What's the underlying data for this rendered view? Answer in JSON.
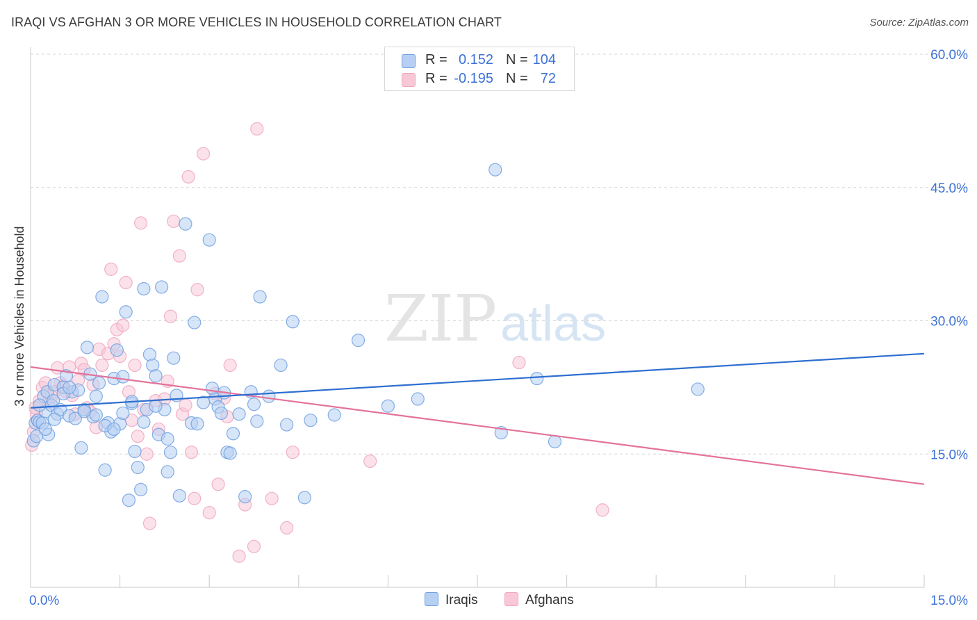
{
  "header": {
    "title": "IRAQI VS AFGHAN 3 OR MORE VEHICLES IN HOUSEHOLD CORRELATION CHART",
    "source": "Source: ZipAtlas.com"
  },
  "legend": {
    "rows": [
      {
        "r_label": "R =",
        "r_value": "0.152",
        "n_label": "N =",
        "n_value": "104"
      },
      {
        "r_label": "R =",
        "r_value": "-0.195",
        "n_label": "N =",
        "n_value": "72"
      }
    ]
  },
  "colors": {
    "iraqis": "#6fa0e0",
    "iraqis_fill": "#b7cff2",
    "iraqis_line": "#2d6fd0",
    "afghans": "#f0a6bf",
    "afghans_fill": "#f8c8d7",
    "afghans_line": "#e3729a",
    "value_text": "#3d72d6",
    "grid": "#d5d5d5"
  },
  "watermark": {
    "zip": "ZIP",
    "atlas": "atlas"
  },
  "chart_data": {
    "type": "scatter",
    "ylabel": "3 or more Vehicles in Household",
    "xlim": [
      0,
      15
    ],
    "ylim": [
      0,
      60
    ],
    "x_tick_labels": [
      "0.0%",
      "15.0%"
    ],
    "y_tick_labels": [
      "60.0%",
      "45.0%",
      "30.0%",
      "15.0%"
    ],
    "y_ticks": [
      60,
      45,
      30,
      15
    ],
    "series": [
      {
        "name": "Iraqis",
        "trend": [
          [
            0,
            20.2
          ],
          [
            15,
            26.3
          ]
        ],
        "points": [
          [
            0.05,
            16.5
          ],
          [
            0.08,
            18.5
          ],
          [
            0.1,
            17.0
          ],
          [
            0.12,
            18.8
          ],
          [
            0.15,
            18.6
          ],
          [
            0.2,
            18.5
          ],
          [
            0.22,
            21.5
          ],
          [
            0.25,
            19.8
          ],
          [
            0.28,
            22.0
          ],
          [
            0.3,
            17.2
          ],
          [
            0.35,
            20.5
          ],
          [
            0.38,
            21.0
          ],
          [
            0.4,
            22.8
          ],
          [
            0.45,
            19.5
          ],
          [
            0.5,
            20.0
          ],
          [
            0.55,
            22.5
          ],
          [
            0.6,
            23.8
          ],
          [
            0.65,
            19.3
          ],
          [
            0.7,
            22.0
          ],
          [
            0.75,
            19.0
          ],
          [
            0.8,
            22.2
          ],
          [
            0.85,
            15.7
          ],
          [
            0.9,
            20.0
          ],
          [
            0.95,
            27.0
          ],
          [
            1.0,
            24.0
          ],
          [
            1.05,
            19.2
          ],
          [
            1.1,
            21.5
          ],
          [
            1.15,
            23.0
          ],
          [
            1.2,
            32.7
          ],
          [
            1.25,
            13.2
          ],
          [
            1.3,
            18.5
          ],
          [
            1.35,
            17.5
          ],
          [
            1.4,
            23.5
          ],
          [
            1.45,
            26.7
          ],
          [
            1.5,
            18.4
          ],
          [
            1.55,
            23.7
          ],
          [
            1.6,
            31.0
          ],
          [
            1.65,
            9.8
          ],
          [
            1.7,
            20.7
          ],
          [
            1.75,
            15.3
          ],
          [
            1.8,
            13.5
          ],
          [
            1.85,
            11.0
          ],
          [
            1.9,
            33.6
          ],
          [
            1.95,
            20.0
          ],
          [
            2.0,
            26.2
          ],
          [
            2.05,
            25.0
          ],
          [
            2.1,
            23.8
          ],
          [
            2.15,
            17.2
          ],
          [
            2.2,
            33.8
          ],
          [
            2.25,
            20.0
          ],
          [
            2.3,
            13.0
          ],
          [
            2.35,
            15.2
          ],
          [
            2.4,
            25.8
          ],
          [
            2.5,
            10.3
          ],
          [
            2.6,
            40.9
          ],
          [
            2.7,
            18.5
          ],
          [
            2.75,
            29.8
          ],
          [
            2.8,
            18.4
          ],
          [
            3.0,
            39.1
          ],
          [
            3.05,
            22.4
          ],
          [
            3.1,
            21.2
          ],
          [
            3.15,
            20.3
          ],
          [
            3.2,
            19.6
          ],
          [
            3.3,
            15.2
          ],
          [
            3.35,
            15.1
          ],
          [
            3.4,
            17.3
          ],
          [
            3.6,
            10.2
          ],
          [
            3.7,
            22.0
          ],
          [
            3.8,
            18.7
          ],
          [
            3.85,
            32.7
          ],
          [
            4.0,
            21.5
          ],
          [
            4.2,
            25.0
          ],
          [
            4.3,
            18.3
          ],
          [
            4.4,
            29.9
          ],
          [
            4.6,
            10.1
          ],
          [
            4.7,
            18.8
          ],
          [
            5.1,
            19.4
          ],
          [
            5.5,
            27.8
          ],
          [
            6.0,
            20.4
          ],
          [
            6.5,
            21.2
          ],
          [
            7.8,
            47.0
          ],
          [
            7.9,
            17.4
          ],
          [
            8.5,
            23.5
          ],
          [
            8.8,
            16.4
          ],
          [
            11.2,
            22.3
          ],
          [
            0.15,
            20.5
          ],
          [
            0.25,
            17.8
          ],
          [
            0.4,
            18.9
          ],
          [
            0.55,
            21.8
          ],
          [
            0.65,
            22.5
          ],
          [
            0.9,
            19.8
          ],
          [
            1.1,
            19.4
          ],
          [
            1.25,
            18.2
          ],
          [
            1.4,
            17.8
          ],
          [
            1.55,
            19.6
          ],
          [
            1.7,
            20.9
          ],
          [
            1.9,
            18.6
          ],
          [
            2.1,
            20.4
          ],
          [
            2.3,
            16.7
          ],
          [
            2.45,
            21.6
          ],
          [
            2.9,
            20.8
          ],
          [
            3.25,
            21.9
          ],
          [
            3.5,
            19.5
          ],
          [
            3.75,
            20.6
          ]
        ]
      },
      {
        "name": "Afghans",
        "trend": [
          [
            0,
            24.8
          ],
          [
            15,
            11.6
          ]
        ],
        "points": [
          [
            0.02,
            16.0
          ],
          [
            0.05,
            17.5
          ],
          [
            0.1,
            19.5
          ],
          [
            0.15,
            21.0
          ],
          [
            0.2,
            22.5
          ],
          [
            0.25,
            23.0
          ],
          [
            0.3,
            20.8
          ],
          [
            0.35,
            21.5
          ],
          [
            0.4,
            22.0
          ],
          [
            0.45,
            24.7
          ],
          [
            0.5,
            23.0
          ],
          [
            0.55,
            22.6
          ],
          [
            0.6,
            22.0
          ],
          [
            0.65,
            24.8
          ],
          [
            0.7,
            21.6
          ],
          [
            0.75,
            19.5
          ],
          [
            0.8,
            23.3
          ],
          [
            0.85,
            25.2
          ],
          [
            0.9,
            24.5
          ],
          [
            0.95,
            20.2
          ],
          [
            1.0,
            19.8
          ],
          [
            1.05,
            22.8
          ],
          [
            1.1,
            18.0
          ],
          [
            1.15,
            26.8
          ],
          [
            1.2,
            25.0
          ],
          [
            1.3,
            26.3
          ],
          [
            1.35,
            35.8
          ],
          [
            1.4,
            27.4
          ],
          [
            1.45,
            29.0
          ],
          [
            1.5,
            26.0
          ],
          [
            1.55,
            29.5
          ],
          [
            1.6,
            34.3
          ],
          [
            1.65,
            22.0
          ],
          [
            1.7,
            18.8
          ],
          [
            1.75,
            25.0
          ],
          [
            1.8,
            17.0
          ],
          [
            1.85,
            41.0
          ],
          [
            1.9,
            20.0
          ],
          [
            1.95,
            15.0
          ],
          [
            2.0,
            7.2
          ],
          [
            2.1,
            21.0
          ],
          [
            2.15,
            17.8
          ],
          [
            2.25,
            21.2
          ],
          [
            2.3,
            23.2
          ],
          [
            2.35,
            30.5
          ],
          [
            2.4,
            41.2
          ],
          [
            2.5,
            37.3
          ],
          [
            2.55,
            19.5
          ],
          [
            2.6,
            20.5
          ],
          [
            2.65,
            46.2
          ],
          [
            2.7,
            15.2
          ],
          [
            2.75,
            10.0
          ],
          [
            2.8,
            33.5
          ],
          [
            2.9,
            48.8
          ],
          [
            3.0,
            8.4
          ],
          [
            3.1,
            21.8
          ],
          [
            3.15,
            11.6
          ],
          [
            3.25,
            21.3
          ],
          [
            3.3,
            19.2
          ],
          [
            3.35,
            25.0
          ],
          [
            3.5,
            3.5
          ],
          [
            3.6,
            9.3
          ],
          [
            3.75,
            4.6
          ],
          [
            3.8,
            51.6
          ],
          [
            4.05,
            10.0
          ],
          [
            4.3,
            6.7
          ],
          [
            4.4,
            15.2
          ],
          [
            5.7,
            14.2
          ],
          [
            8.2,
            25.3
          ],
          [
            9.6,
            8.7
          ],
          [
            0.08,
            20.2
          ],
          [
            0.12,
            18.8
          ]
        ]
      }
    ]
  },
  "bottom_legend": [
    {
      "label": "Iraqis"
    },
    {
      "label": "Afghans"
    }
  ]
}
